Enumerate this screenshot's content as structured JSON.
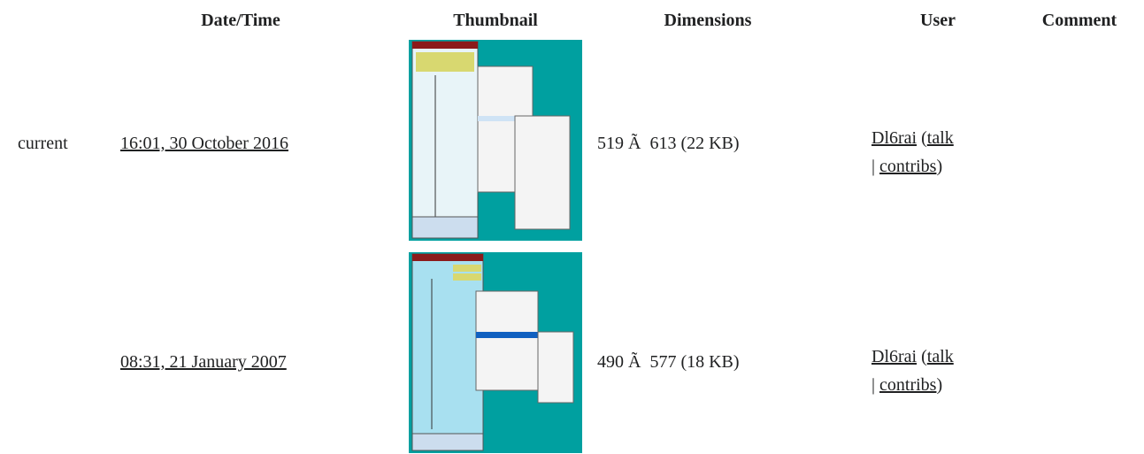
{
  "table": {
    "headers": [
      "Date/Time",
      "Thumbnail",
      "Dimensions",
      "User",
      "Comment"
    ],
    "rows": [
      {
        "status": "current",
        "datetime": "16:01, 30 October 2016",
        "dimensions": "519 Ã  613 (22 KB)",
        "user": {
          "name": "Dl6rai",
          "open": "(",
          "talk": "talk",
          "separator": "|",
          "contribs": "contribs",
          "close": ")"
        }
      },
      {
        "datetime": "08:31, 21 January 2007",
        "dimensions": "490 Ã  577 (18 KB)",
        "user": {
          "name": "Dl6rai",
          "open": "(",
          "talk": "talk",
          "separator": "|",
          "contribs": "contribs",
          "close": ")"
        }
      }
    ]
  }
}
